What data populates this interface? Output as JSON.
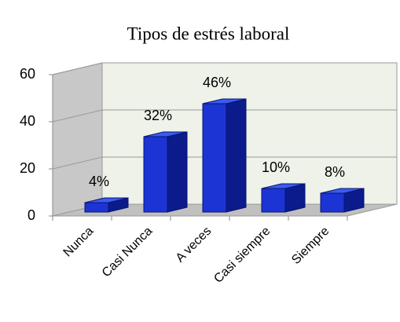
{
  "chart_data": {
    "type": "bar3d",
    "title": "Tipos de estrés laboral",
    "categories": [
      "Nunca",
      "Casi Nunca",
      "A veces",
      "Casi siempre",
      "Siempre"
    ],
    "values": [
      4,
      32,
      46,
      10,
      8
    ],
    "value_labels": [
      "4%",
      "32%",
      "46%",
      "10%",
      "8%"
    ],
    "color": "#1c34d4",
    "ylim": [
      0,
      60
    ],
    "yticks": [
      0,
      20,
      40,
      60
    ],
    "grid": true
  }
}
